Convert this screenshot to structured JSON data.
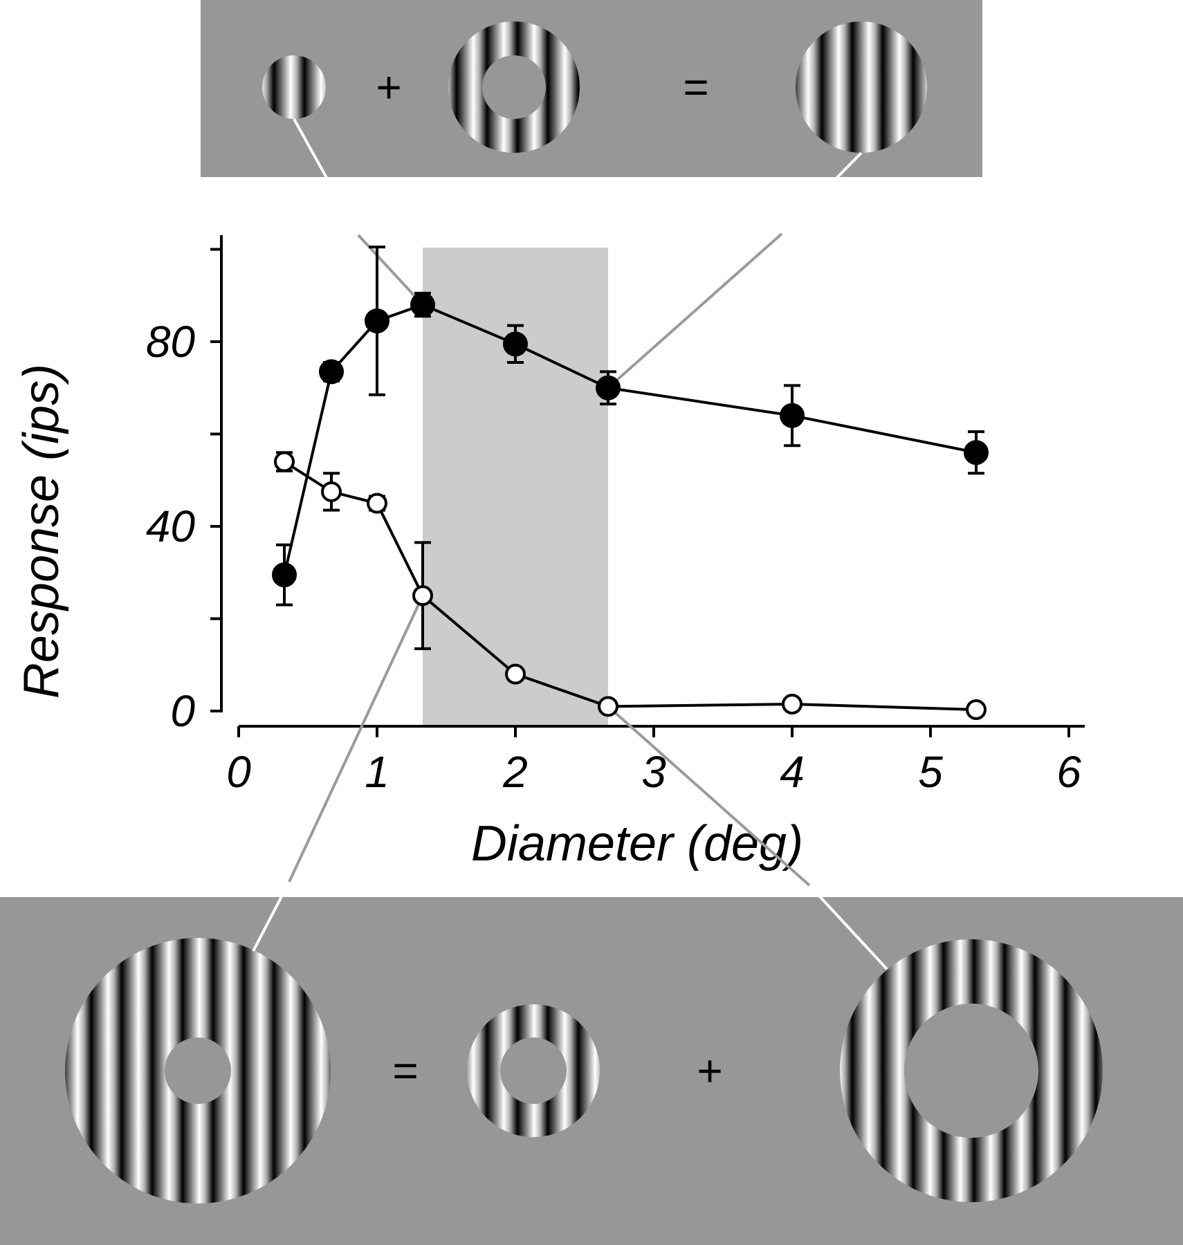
{
  "colors": {
    "panel_gray": "#979797",
    "highlight_band": "#cccccc",
    "connector_dark": "#9a9a9a",
    "connector_light": "#ffffff",
    "filled_marker": "#000000",
    "open_marker": "#ffffff"
  },
  "top_panel": {
    "operators": [
      "+",
      "="
    ]
  },
  "bottom_panel": {
    "operators": [
      "=",
      "+"
    ]
  },
  "chart_data": {
    "type": "line",
    "xlabel": "Diameter (deg)",
    "ylabel": "Response (ips)",
    "xlim": [
      0,
      6
    ],
    "ylim": [
      0,
      100
    ],
    "x_ticks": [
      0,
      1,
      2,
      3,
      4,
      5,
      6
    ],
    "y_ticks": [
      0,
      40,
      80
    ],
    "y_minor_ticks": [
      20,
      60,
      100
    ],
    "x_tick_labels": [
      "0",
      "1",
      "2",
      "3",
      "4",
      "5",
      "6"
    ],
    "y_tick_labels": [
      "0",
      "40",
      "80"
    ],
    "highlight_x_range": [
      1.33,
      2.67
    ],
    "grid": false,
    "legend": "none",
    "series": [
      {
        "marker": "filled",
        "x": [
          0.33,
          0.67,
          1.0,
          1.33,
          2.0,
          2.67,
          4.0,
          5.33
        ],
        "y": [
          29.5,
          73.5,
          84.5,
          88.0,
          79.5,
          70.0,
          64.0,
          56.0
        ],
        "err": [
          6.5,
          2.0,
          16.0,
          2.5,
          4.0,
          3.5,
          6.5,
          4.5
        ]
      },
      {
        "marker": "open",
        "x": [
          0.33,
          0.67,
          1.0,
          1.33,
          2.0,
          2.67,
          4.0,
          5.33
        ],
        "y": [
          54.0,
          47.5,
          45.0,
          25.0,
          8.0,
          1.0,
          1.5,
          0.3
        ],
        "err": [
          2.0,
          4.0,
          1.5,
          11.5,
          0,
          0,
          0,
          0
        ]
      }
    ]
  }
}
